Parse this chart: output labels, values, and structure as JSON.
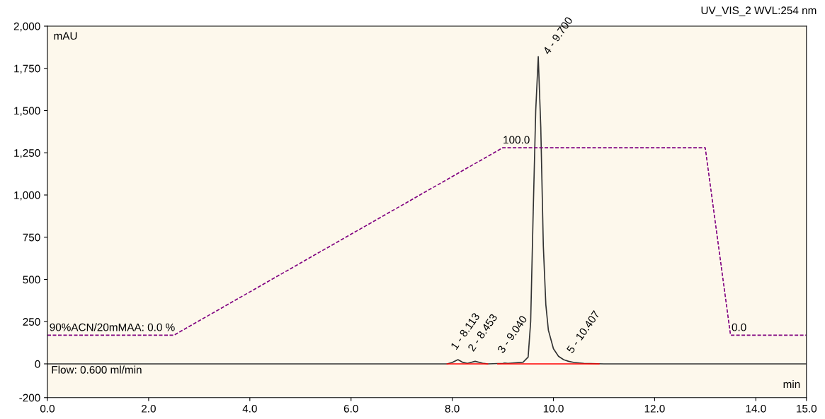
{
  "chart_data": {
    "type": "line",
    "title": "UV_VIS_2 WVL:254 nm",
    "xlabel": "min",
    "ylabel": "mAU",
    "xlim": [
      0,
      15
    ],
    "ylim": [
      -200,
      2000
    ],
    "xticks": [
      {
        "value": 0,
        "label": "0.0"
      },
      {
        "value": 2,
        "label": "2.0"
      },
      {
        "value": 4,
        "label": "4.0"
      },
      {
        "value": 6,
        "label": "6.0"
      },
      {
        "value": 8,
        "label": "8.0"
      },
      {
        "value": 10,
        "label": "10.0"
      },
      {
        "value": 12,
        "label": "12.0"
      },
      {
        "value": 14,
        "label": "14.0"
      },
      {
        "value": 15,
        "label": "15.0"
      }
    ],
    "yticks": [
      {
        "value": -200,
        "label": "-200"
      },
      0,
      250,
      500,
      750,
      {
        "value": 1000,
        "label": "1,000"
      },
      {
        "value": 1250,
        "label": "1,250"
      },
      {
        "value": 1500,
        "label": "1,500"
      },
      {
        "value": 1750,
        "label": "1,750"
      },
      {
        "value": 2000,
        "label": "2,000"
      }
    ],
    "grid": false,
    "legend": false,
    "series": [
      {
        "color": "#333333",
        "line_style": "solid",
        "x": [
          0,
          7.9,
          8.0,
          8.113,
          8.2,
          8.3,
          8.453,
          8.6,
          8.7,
          9.0,
          9.04,
          9.1,
          9.4,
          9.5,
          9.55,
          9.6,
          9.65,
          9.7,
          9.75,
          9.8,
          9.85,
          9.9,
          10.0,
          10.1,
          10.2,
          10.3,
          10.407,
          10.6,
          11.0,
          15.0
        ],
        "values": [
          0,
          0,
          8,
          25,
          10,
          3,
          15,
          4,
          0,
          3,
          5,
          3,
          10,
          40,
          250,
          900,
          1500,
          1820,
          1400,
          700,
          350,
          200,
          90,
          45,
          25,
          15,
          8,
          3,
          0,
          0
        ]
      },
      {
        "color": "#800080",
        "line_style": "dashed",
        "x": [
          0,
          2.5,
          9.0,
          13.0,
          13.5,
          15.0
        ],
        "values": [
          170,
          170,
          1280,
          1280,
          170,
          170
        ]
      },
      {
        "color": "#ff0000",
        "line_style": "solid",
        "x": [
          7.9,
          8.7,
          8.75,
          8.9,
          10.9
        ],
        "values": [
          0,
          0,
          null,
          0,
          0
        ]
      }
    ],
    "annotations": [
      {
        "text": "90%ACN/20mMAA: 0.0 %",
        "x": 0,
        "y": 170
      },
      {
        "text": "100.0",
        "x": 9.0,
        "y": 1280
      },
      {
        "text": "0.0",
        "x": 13.5,
        "y": 170
      },
      "Flow: 0.600 ml/min",
      {
        "text": "1 - 8.113",
        "x": 8.113,
        "y": 25
      },
      {
        "text": "2 - 8.453",
        "x": 8.453,
        "y": 15
      },
      {
        "text": "3 - 9.040",
        "x": 9.04,
        "y": 5
      },
      {
        "text": "4 - 9.700",
        "x": 9.7,
        "y": 1820
      },
      {
        "text": "5 - 10.407",
        "x": 10.407,
        "y": 5
      }
    ]
  }
}
